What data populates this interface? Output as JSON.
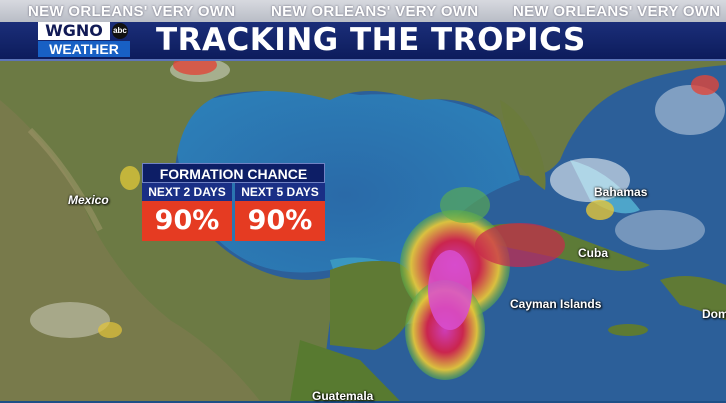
{
  "ticker": {
    "repeat_text": [
      "NEW ORLEANS' VERY OWN",
      "NEW ORLEANS' VERY OWN",
      "NEW ORLEANS' VERY OWN"
    ]
  },
  "logo": {
    "station": "WGNO",
    "network": "abc",
    "subtitle": "WEATHER"
  },
  "title": "TRACKING THE TROPICS",
  "formation": {
    "header": "FORMATION CHANCE",
    "cols": [
      {
        "label": "NEXT 2 DAYS",
        "value": "90%"
      },
      {
        "label": "NEXT 5 DAYS",
        "value": "90%"
      }
    ],
    "value_color": "#e53b22"
  },
  "map_labels": {
    "mexico": "Mexico",
    "bahamas": "Bahamas",
    "cuba": "Cuba",
    "cayman": "Cayman Islands",
    "guatemala": "Guatemala",
    "dom": "Dom"
  }
}
